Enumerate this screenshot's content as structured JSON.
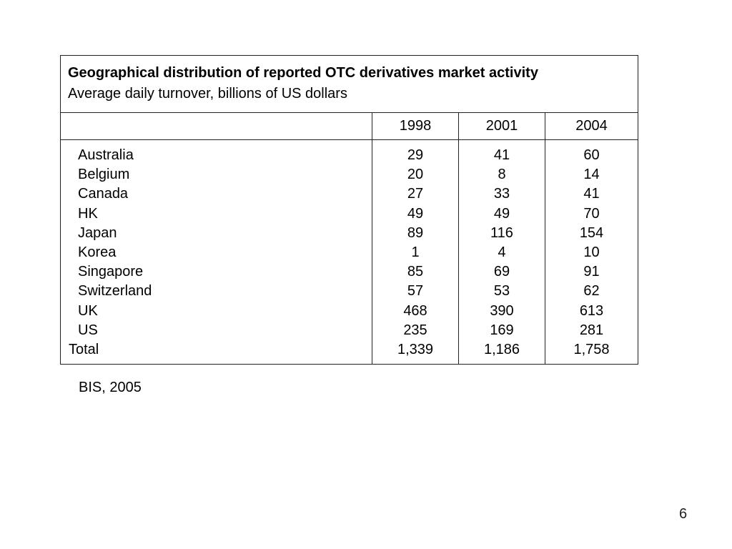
{
  "table": {
    "title": "Geographical distribution of reported OTC derivatives market activity",
    "subtitle": "Average daily turnover, billions of US dollars",
    "columns": [
      "1998",
      "2001",
      "2004"
    ],
    "rows": [
      {
        "country": "Australia",
        "values": [
          "29",
          "41",
          "60"
        ]
      },
      {
        "country": "Belgium",
        "values": [
          "20",
          "8",
          "14"
        ]
      },
      {
        "country": "Canada",
        "values": [
          "27",
          "33",
          "41"
        ]
      },
      {
        "country": "HK",
        "values": [
          "49",
          "49",
          "70"
        ]
      },
      {
        "country": "Japan",
        "values": [
          "89",
          "116",
          "154"
        ]
      },
      {
        "country": "Korea",
        "values": [
          "1",
          "4",
          "10"
        ]
      },
      {
        "country": "Singapore",
        "values": [
          "85",
          "69",
          "91"
        ]
      },
      {
        "country": "Switzerland",
        "values": [
          "57",
          "53",
          "62"
        ]
      },
      {
        "country": "UK",
        "values": [
          "468",
          "390",
          "613"
        ]
      },
      {
        "country": "US",
        "values": [
          "235",
          "169",
          "281"
        ]
      }
    ],
    "total": {
      "label": "Total",
      "values": [
        "1,339",
        "1,186",
        "1,758"
      ]
    }
  },
  "source": "BIS, 2005",
  "page_number": "6"
}
